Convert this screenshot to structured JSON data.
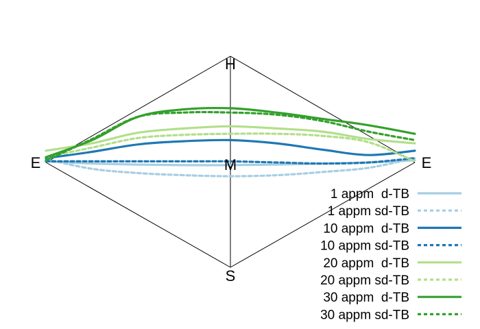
{
  "chart_data": {
    "type": "line",
    "title": "",
    "vertex_labels": {
      "left": "E",
      "right": "E",
      "top": "H",
      "bottom": "S",
      "center": "M"
    },
    "x": [
      -1.0,
      -0.75,
      -0.5,
      -0.25,
      0.0,
      0.25,
      0.5,
      0.75,
      1.0
    ],
    "series": [
      {
        "name": "1 appm  d-TB",
        "color": "#a6cee3",
        "dash": "solid",
        "y": [
          0.01,
          -0.01,
          -0.02,
          -0.025,
          -0.025,
          -0.02,
          -0.01,
          0.0,
          0.02
        ]
      },
      {
        "name": "1 appm sd-TB",
        "color": "#a6cee3",
        "dash": "dashed",
        "y": [
          0.03,
          -0.06,
          -0.1,
          -0.12,
          -0.13,
          -0.12,
          -0.09,
          -0.05,
          0.04
        ]
      },
      {
        "name": "10 appm  d-TB",
        "color": "#1f78b4",
        "dash": "solid",
        "y": [
          0.04,
          0.1,
          0.17,
          0.2,
          0.21,
          0.18,
          0.12,
          0.07,
          0.11
        ]
      },
      {
        "name": "10 appm sd-TB",
        "color": "#1f78b4",
        "dash": "dashed",
        "y": [
          0.01,
          0.01,
          0.01,
          0.01,
          0.01,
          0.0,
          -0.01,
          0.0,
          0.04
        ]
      },
      {
        "name": "20 appm  d-TB",
        "color": "#b2df8a",
        "dash": "solid",
        "y": [
          0.11,
          0.18,
          0.28,
          0.32,
          0.34,
          0.32,
          0.29,
          0.22,
          0.18
        ]
      },
      {
        "name": "20 appm sd-TB",
        "color": "#b2df8a",
        "dash": "dashed",
        "y": [
          0.05,
          0.14,
          0.23,
          0.26,
          0.27,
          0.27,
          0.25,
          0.19,
          0.01
        ]
      },
      {
        "name": "30 appm  d-TB",
        "color": "#33a02c",
        "dash": "solid",
        "y": [
          0.05,
          0.21,
          0.43,
          0.5,
          0.51,
          0.47,
          0.41,
          0.35,
          0.27
        ]
      },
      {
        "name": "30 appm sd-TB",
        "color": "#33a02c",
        "dash": "dashed",
        "y": [
          0.02,
          0.22,
          0.43,
          0.47,
          0.47,
          0.45,
          0.39,
          0.29,
          0.21
        ]
      }
    ],
    "legend_position": "bottom-right"
  }
}
